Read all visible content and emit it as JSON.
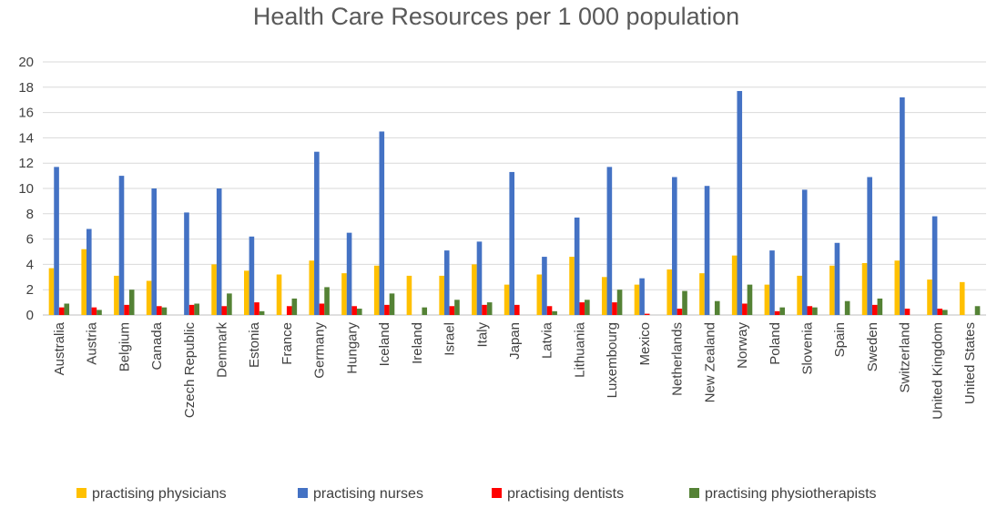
{
  "chart_data": {
    "type": "bar",
    "title": "Health Care Resources per 1 000 population",
    "xlabel": "",
    "ylabel": "",
    "ylim": [
      0,
      20
    ],
    "yticks": [
      0,
      2,
      4,
      6,
      8,
      10,
      12,
      14,
      16,
      18,
      20
    ],
    "grid": true,
    "legend_position": "bottom",
    "categories": [
      "Australia",
      "Austria",
      "Belgium",
      "Canada",
      "Czech Republic",
      "Denmark",
      "Estonia",
      "France",
      "Germany",
      "Hungary",
      "Iceland",
      "Ireland",
      "Israel",
      "Italy",
      "Japan",
      "Latvia",
      "Lithuania",
      "Luxembourg",
      "Mexico",
      "Netherlands",
      "New Zealand",
      "Norway",
      "Poland",
      "Slovenia",
      "Spain",
      "Sweden",
      "Switzerland",
      "United Kingdom",
      "United States"
    ],
    "series": [
      {
        "name": "practising physicians",
        "color": "#ffc000",
        "values": [
          3.7,
          5.2,
          3.1,
          2.7,
          null,
          4.0,
          3.5,
          3.2,
          4.3,
          3.3,
          3.9,
          3.1,
          3.1,
          4.0,
          2.4,
          3.2,
          4.6,
          3.0,
          2.4,
          3.6,
          3.3,
          4.7,
          2.4,
          3.1,
          3.9,
          4.1,
          4.3,
          2.8,
          2.6
        ]
      },
      {
        "name": "practising nurses",
        "color": "#4472c4",
        "values": [
          11.7,
          6.8,
          11.0,
          10.0,
          8.1,
          10.0,
          6.2,
          null,
          12.9,
          6.5,
          14.5,
          null,
          5.1,
          5.8,
          11.3,
          4.6,
          7.7,
          11.7,
          2.9,
          10.9,
          10.2,
          17.7,
          5.1,
          9.9,
          5.7,
          10.9,
          17.2,
          7.8,
          null
        ]
      },
      {
        "name": "practising dentists",
        "color": "#ff0000",
        "values": [
          0.6,
          0.6,
          0.8,
          0.7,
          0.8,
          0.7,
          1.0,
          0.7,
          0.9,
          0.7,
          0.8,
          null,
          0.7,
          0.8,
          0.8,
          0.7,
          1.0,
          1.0,
          0.1,
          0.5,
          null,
          0.9,
          0.3,
          0.7,
          null,
          0.8,
          0.5,
          0.5,
          null
        ]
      },
      {
        "name": "practising physiotherapists",
        "color": "#548235",
        "values": [
          0.9,
          0.4,
          2.0,
          0.6,
          0.9,
          1.7,
          0.3,
          1.3,
          2.2,
          0.5,
          1.7,
          0.6,
          1.2,
          1.0,
          null,
          0.3,
          1.2,
          2.0,
          null,
          1.9,
          1.1,
          2.4,
          0.6,
          0.6,
          1.1,
          1.3,
          null,
          0.4,
          0.7
        ]
      }
    ]
  }
}
